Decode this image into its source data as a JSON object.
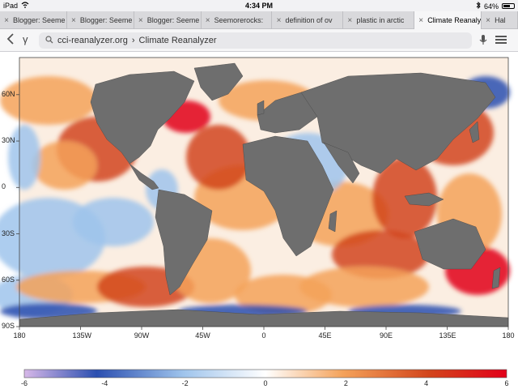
{
  "status_bar": {
    "device": "iPad",
    "time": "4:34 PM",
    "battery": "64%",
    "battery_level": 0.64
  },
  "tabs": [
    {
      "label": "Blogger: Seeme",
      "active": false
    },
    {
      "label": "Blogger: Seeme",
      "active": false
    },
    {
      "label": "Blogger: Seeme",
      "active": false
    },
    {
      "label": "Seemorerocks:",
      "active": false
    },
    {
      "label": "definition of ov",
      "active": false
    },
    {
      "label": "plastic in arctic",
      "active": false
    },
    {
      "label": "Climate Reanaly",
      "active": true
    },
    {
      "label": "Hal",
      "active": false
    }
  ],
  "address_bar": {
    "domain": "cci-reanalyzer.org",
    "separator": "›",
    "page_title": "Climate Reanalyzer"
  },
  "icons": {
    "back": "chevron-left-icon",
    "reader": "gamma-icon",
    "search": "search-icon",
    "mic": "microphone-icon",
    "menu": "menu-icon",
    "close": "close-icon",
    "wifi": "wifi-icon",
    "bluetooth": "bluetooth-icon"
  },
  "map": {
    "lat_labels": [
      "60N",
      "30N",
      "0",
      "30S",
      "60S",
      "90S"
    ],
    "lon_labels": [
      "180",
      "135W",
      "90W",
      "45W",
      "0",
      "45E",
      "90E",
      "135E",
      "180"
    ],
    "colorbar_labels": [
      "-6",
      "-4",
      "-2",
      "0",
      "2",
      "4",
      "6"
    ],
    "land_color": "#6e6e6e",
    "colors": {
      "very_cold": "#d7b8e8",
      "cold": "#2b4fb0",
      "cool": "#9fc4ec",
      "neutral": "#ffffff",
      "warm": "#f4a25a",
      "hot": "#d2451c",
      "very_hot": "#e2001a"
    }
  }
}
